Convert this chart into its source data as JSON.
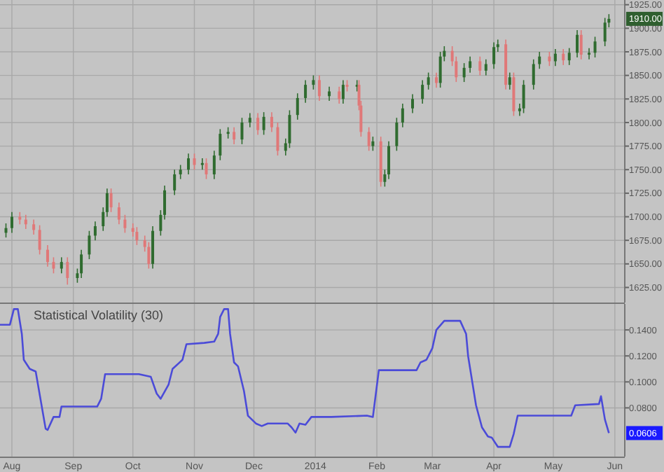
{
  "chart_data": [
    {
      "type": "candlestick",
      "tick_labels": "y",
      "grid": true,
      "x": [
        "2013-07-29",
        "2013-08-01",
        "2013-08-05",
        "2013-08-08",
        "2013-08-12",
        "2013-08-15",
        "2013-08-19",
        "2013-08-22",
        "2013-08-26",
        "2013-08-29",
        "2013-09-03",
        "2013-09-05",
        "2013-09-09",
        "2013-09-12",
        "2013-09-16",
        "2013-09-18",
        "2013-09-20",
        "2013-09-24",
        "2013-09-27",
        "2013-10-01",
        "2013-10-03",
        "2013-10-07",
        "2013-10-09",
        "2013-10-11",
        "2013-10-15",
        "2013-10-17",
        "2013-10-22",
        "2013-10-25",
        "2013-10-29",
        "2013-11-01",
        "2013-11-05",
        "2013-11-07",
        "2013-11-11",
        "2013-11-14",
        "2013-11-18",
        "2013-11-21",
        "2013-11-25",
        "2013-11-29",
        "2013-12-03",
        "2013-12-06",
        "2013-12-10",
        "2013-12-13",
        "2013-12-17",
        "2013-12-19",
        "2013-12-23",
        "2013-12-27",
        "2013-12-31",
        "2014-01-03",
        "2014-01-08",
        "2014-01-13",
        "2014-01-15",
        "2014-01-17",
        "2014-01-22",
        "2014-01-23",
        "2014-01-24",
        "2014-01-28",
        "2014-01-30",
        "2014-02-03",
        "2014-02-05",
        "2014-02-07",
        "2014-02-11",
        "2014-02-14",
        "2014-02-19",
        "2014-02-24",
        "2014-02-27",
        "2014-03-03",
        "2014-03-05",
        "2014-03-07",
        "2014-03-11",
        "2014-03-13",
        "2014-03-17",
        "2014-03-20",
        "2014-03-25",
        "2014-03-28",
        "2014-04-01",
        "2014-04-03",
        "2014-04-07",
        "2014-04-09",
        "2014-04-11",
        "2014-04-14",
        "2014-04-16",
        "2014-04-21",
        "2014-04-24",
        "2014-04-29",
        "2014-05-02",
        "2014-05-06",
        "2014-05-09",
        "2014-05-13",
        "2014-05-15",
        "2014-05-19",
        "2014-05-22",
        "2014-05-27",
        "2014-05-29"
      ],
      "ohlc": [
        [
          1683,
          1693,
          1678,
          1688
        ],
        [
          1688,
          1705,
          1683,
          1700
        ],
        [
          1700,
          1705,
          1692,
          1697
        ],
        [
          1697,
          1702,
          1687,
          1692
        ],
        [
          1692,
          1697,
          1681,
          1686
        ],
        [
          1686,
          1691,
          1660,
          1665
        ],
        [
          1665,
          1670,
          1647,
          1652
        ],
        [
          1652,
          1657,
          1640,
          1645
        ],
        [
          1645,
          1657,
          1640,
          1652
        ],
        [
          1652,
          1657,
          1628,
          1635
        ],
        [
          1635,
          1645,
          1630,
          1640
        ],
        [
          1640,
          1665,
          1635,
          1660
        ],
        [
          1660,
          1685,
          1655,
          1680
        ],
        [
          1680,
          1695,
          1675,
          1690
        ],
        [
          1690,
          1710,
          1685,
          1705
        ],
        [
          1705,
          1730,
          1700,
          1725
        ],
        [
          1725,
          1730,
          1705,
          1710
        ],
        [
          1710,
          1715,
          1692,
          1697
        ],
        [
          1697,
          1702,
          1683,
          1688
        ],
        [
          1688,
          1693,
          1679,
          1684
        ],
        [
          1684,
          1689,
          1670,
          1675
        ],
        [
          1675,
          1680,
          1663,
          1668
        ],
        [
          1668,
          1673,
          1645,
          1650
        ],
        [
          1650,
          1690,
          1645,
          1685
        ],
        [
          1685,
          1707,
          1680,
          1702
        ],
        [
          1702,
          1733,
          1697,
          1728
        ],
        [
          1728,
          1750,
          1723,
          1745
        ],
        [
          1745,
          1755,
          1740,
          1750
        ],
        [
          1750,
          1767,
          1745,
          1762
        ],
        [
          1762,
          1767,
          1750,
          1755
        ],
        [
          1755,
          1762,
          1750,
          1757
        ],
        [
          1757,
          1762,
          1740,
          1745
        ],
        [
          1745,
          1770,
          1740,
          1765
        ],
        [
          1765,
          1793,
          1760,
          1788
        ],
        [
          1788,
          1795,
          1783,
          1790
        ],
        [
          1790,
          1795,
          1777,
          1782
        ],
        [
          1782,
          1805,
          1777,
          1800
        ],
        [
          1800,
          1810,
          1795,
          1805
        ],
        [
          1805,
          1810,
          1787,
          1792
        ],
        [
          1792,
          1811,
          1787,
          1806
        ],
        [
          1806,
          1811,
          1790,
          1795
        ],
        [
          1795,
          1800,
          1765,
          1770
        ],
        [
          1770,
          1783,
          1765,
          1778
        ],
        [
          1778,
          1813,
          1773,
          1808
        ],
        [
          1808,
          1831,
          1803,
          1826
        ],
        [
          1826,
          1845,
          1821,
          1840
        ],
        [
          1840,
          1850,
          1835,
          1845
        ],
        [
          1845,
          1850,
          1823,
          1828
        ],
        [
          1828,
          1838,
          1823,
          1833
        ],
        [
          1833,
          1838,
          1820,
          1825
        ],
        [
          1825,
          1845,
          1820,
          1840
        ],
        [
          1840,
          1845,
          1833,
          1838
        ],
        [
          1838,
          1845,
          1833,
          1840
        ],
        [
          1840,
          1845,
          1813,
          1818
        ],
        [
          1818,
          1823,
          1785,
          1790
        ],
        [
          1790,
          1795,
          1770,
          1775
        ],
        [
          1775,
          1785,
          1770,
          1780
        ],
        [
          1780,
          1785,
          1732,
          1737
        ],
        [
          1737,
          1750,
          1732,
          1745
        ],
        [
          1745,
          1780,
          1740,
          1775
        ],
        [
          1775,
          1805,
          1770,
          1800
        ],
        [
          1800,
          1820,
          1795,
          1815
        ],
        [
          1815,
          1830,
          1810,
          1825
        ],
        [
          1825,
          1845,
          1820,
          1840
        ],
        [
          1840,
          1853,
          1835,
          1848
        ],
        [
          1848,
          1853,
          1837,
          1842
        ],
        [
          1842,
          1875,
          1837,
          1870
        ],
        [
          1870,
          1881,
          1865,
          1876
        ],
        [
          1876,
          1881,
          1860,
          1865
        ],
        [
          1865,
          1870,
          1843,
          1848
        ],
        [
          1848,
          1863,
          1843,
          1858
        ],
        [
          1858,
          1870,
          1853,
          1865
        ],
        [
          1865,
          1870,
          1850,
          1855
        ],
        [
          1855,
          1867,
          1850,
          1862
        ],
        [
          1862,
          1885,
          1857,
          1880
        ],
        [
          1880,
          1888,
          1875,
          1883
        ],
        [
          1883,
          1888,
          1835,
          1840
        ],
        [
          1840,
          1853,
          1835,
          1848
        ],
        [
          1848,
          1853,
          1807,
          1812
        ],
        [
          1812,
          1820,
          1807,
          1815
        ],
        [
          1815,
          1845,
          1810,
          1840
        ],
        [
          1840,
          1867,
          1835,
          1862
        ],
        [
          1862,
          1875,
          1857,
          1870
        ],
        [
          1870,
          1875,
          1860,
          1865
        ],
        [
          1865,
          1878,
          1860,
          1873
        ],
        [
          1873,
          1878,
          1861,
          1866
        ],
        [
          1866,
          1879,
          1861,
          1874
        ],
        [
          1874,
          1898,
          1869,
          1893
        ],
        [
          1893,
          1898,
          1867,
          1872
        ],
        [
          1872,
          1879,
          1867,
          1874
        ],
        [
          1874,
          1891,
          1869,
          1886
        ],
        [
          1886,
          1911,
          1881,
          1906
        ],
        [
          1906,
          1915,
          1901,
          1910
        ]
      ],
      "colors": [
        "#2f6b2f",
        "#2f6b2f",
        "#e07878",
        "#e07878",
        "#e07878",
        "#e07878",
        "#e07878",
        "#e07878",
        "#2f6b2f",
        "#e07878",
        "#2f6b2f",
        "#2f6b2f",
        "#2f6b2f",
        "#2f6b2f",
        "#2f6b2f",
        "#2f6b2f",
        "#e07878",
        "#e07878",
        "#e07878",
        "#e07878",
        "#e07878",
        "#e07878",
        "#e07878",
        "#2f6b2f",
        "#2f6b2f",
        "#2f6b2f",
        "#2f6b2f",
        "#2f6b2f",
        "#2f6b2f",
        "#e07878",
        "#2f6b2f",
        "#e07878",
        "#2f6b2f",
        "#2f6b2f",
        "#2f6b2f",
        "#e07878",
        "#2f6b2f",
        "#2f6b2f",
        "#e07878",
        "#2f6b2f",
        "#e07878",
        "#e07878",
        "#2f6b2f",
        "#2f6b2f",
        "#2f6b2f",
        "#2f6b2f",
        "#2f6b2f",
        "#e07878",
        "#2f6b2f",
        "#e07878",
        "#2f6b2f",
        "#e07878",
        "#2f6b2f",
        "#e07878",
        "#e07878",
        "#e07878",
        "#2f6b2f",
        "#e07878",
        "#2f6b2f",
        "#2f6b2f",
        "#2f6b2f",
        "#2f6b2f",
        "#2f6b2f",
        "#2f6b2f",
        "#2f6b2f",
        "#e07878",
        "#2f6b2f",
        "#2f6b2f",
        "#e07878",
        "#e07878",
        "#2f6b2f",
        "#2f6b2f",
        "#e07878",
        "#2f6b2f",
        "#2f6b2f",
        "#2f6b2f",
        "#e07878",
        "#2f6b2f",
        "#e07878",
        "#2f6b2f",
        "#2f6b2f",
        "#2f6b2f",
        "#2f6b2f",
        "#e07878",
        "#2f6b2f",
        "#e07878",
        "#2f6b2f",
        "#2f6b2f",
        "#e07878",
        "#2f6b2f",
        "#2f6b2f",
        "#2f6b2f",
        "#2f6b2f"
      ],
      "xlim": [
        "2013-07-26",
        "2014-06-06"
      ],
      "ylim": [
        1609,
        1930
      ],
      "yticks": [
        {
          "value": 1625,
          "label": "1625.00"
        },
        {
          "value": 1650,
          "label": "1650.00"
        },
        {
          "value": 1675,
          "label": "1675.00"
        },
        {
          "value": 1700,
          "label": "1700.00"
        },
        {
          "value": 1725,
          "label": "1725.00"
        },
        {
          "value": 1750,
          "label": "1750.00"
        },
        {
          "value": 1775,
          "label": "1775.00"
        },
        {
          "value": 1800,
          "label": "1800.00"
        },
        {
          "value": 1825,
          "label": "1825.00"
        },
        {
          "value": 1850,
          "label": "1850.00"
        },
        {
          "value": 1875,
          "label": "1875.00"
        },
        {
          "value": 1900,
          "label": "1900.00"
        },
        {
          "value": 1925,
          "label": "1925.00"
        }
      ],
      "annotations": [
        {
          "text": "1910.00",
          "x": "2014-05-29",
          "y": 1910
        }
      ]
    },
    {
      "type": "line",
      "title": "Statistical Volatility (30)",
      "grid": true,
      "x": [
        "2013-07-26",
        "2013-07-31",
        "2013-08-02",
        "2013-08-04",
        "2013-08-06",
        "2013-08-07",
        "2013-08-10",
        "2013-08-13",
        "2013-08-18",
        "2013-08-19",
        "2013-08-22",
        "2013-08-25",
        "2013-08-26",
        "2013-09-13",
        "2013-09-15",
        "2013-09-17",
        "2013-10-04",
        "2013-10-10",
        "2013-10-13",
        "2013-10-15",
        "2013-10-19",
        "2013-10-21",
        "2013-10-26",
        "2013-10-28",
        "2013-11-06",
        "2013-11-11",
        "2013-11-13",
        "2013-11-14",
        "2013-11-16",
        "2013-11-18",
        "2013-11-19",
        "2013-11-21",
        "2013-11-23",
        "2013-11-26",
        "2013-11-28",
        "2013-12-02",
        "2013-12-05",
        "2013-12-08",
        "2013-12-18",
        "2013-12-20",
        "2013-12-22",
        "2013-12-24",
        "2013-12-27",
        "2013-12-30",
        "2014-01-09",
        "2014-01-27",
        "2014-01-30",
        "2014-02-02",
        "2014-02-21",
        "2014-02-23",
        "2014-02-26",
        "2014-03-01",
        "2014-03-03",
        "2014-03-07",
        "2014-03-15",
        "2014-03-18",
        "2014-03-19",
        "2014-03-23",
        "2014-03-26",
        "2014-03-29",
        "2014-03-31",
        "2014-04-03",
        "2014-04-09",
        "2014-04-11",
        "2014-04-13",
        "2014-05-10",
        "2014-05-12",
        "2014-05-24",
        "2014-05-25",
        "2014-05-27",
        "2014-05-29"
      ],
      "series": [
        {
          "color": "#4b4bd8",
          "values": [
            0.144,
            0.144,
            0.156,
            0.156,
            0.137,
            0.117,
            0.11,
            0.108,
            0.064,
            0.063,
            0.073,
            0.073,
            0.081,
            0.081,
            0.087,
            0.106,
            0.106,
            0.104,
            0.091,
            0.087,
            0.098,
            0.11,
            0.117,
            0.129,
            0.13,
            0.131,
            0.137,
            0.15,
            0.156,
            0.156,
            0.137,
            0.115,
            0.112,
            0.093,
            0.074,
            0.068,
            0.066,
            0.068,
            0.068,
            0.065,
            0.061,
            0.068,
            0.067,
            0.073,
            0.073,
            0.074,
            0.073,
            0.109,
            0.109,
            0.115,
            0.117,
            0.126,
            0.14,
            0.147,
            0.147,
            0.137,
            0.12,
            0.082,
            0.065,
            0.058,
            0.057,
            0.05,
            0.05,
            0.06,
            0.074,
            0.074,
            0.082,
            0.083,
            0.089,
            0.071,
            0.0606
          ]
        }
      ],
      "xlim": [
        "2013-07-26",
        "2014-06-06"
      ],
      "ylim": [
        0.0425,
        0.16
      ],
      "xticks": [
        {
          "value": "2013-08-01",
          "label": "Aug"
        },
        {
          "value": "2013-09-01",
          "label": "Sep"
        },
        {
          "value": "2013-10-01",
          "label": "Oct"
        },
        {
          "value": "2013-11-01",
          "label": "Nov"
        },
        {
          "value": "2013-12-01",
          "label": "Dec"
        },
        {
          "value": "2014-01-01",
          "label": "2014"
        },
        {
          "value": "2014-02-01",
          "label": "Feb"
        },
        {
          "value": "2014-03-01",
          "label": "Mar"
        },
        {
          "value": "2014-04-01",
          "label": "Apr"
        },
        {
          "value": "2014-05-01",
          "label": "May"
        },
        {
          "value": "2014-06-01",
          "label": "Jun"
        }
      ],
      "yticks": [
        {
          "value": 0.08,
          "label": "0.0800"
        },
        {
          "value": 0.1,
          "label": "0.1000"
        },
        {
          "value": 0.12,
          "label": "0.1200"
        },
        {
          "value": 0.14,
          "label": "0.1400"
        }
      ],
      "annotations": [
        {
          "text": "0.0606",
          "x": "2014-05-29",
          "y": 0.0606
        }
      ]
    }
  ]
}
